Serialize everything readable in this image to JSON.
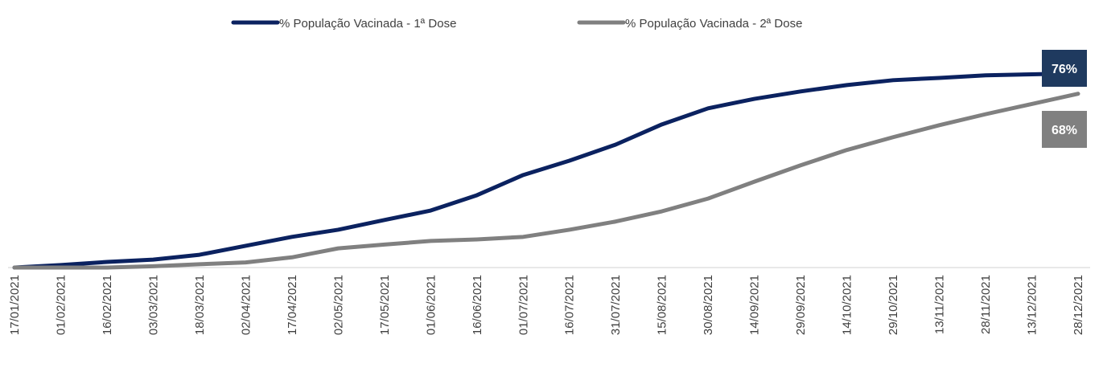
{
  "chart_data": {
    "type": "line",
    "categories": [
      "17/01/2021",
      "01/02/2021",
      "16/02/2021",
      "03/03/2021",
      "18/03/2021",
      "02/04/2021",
      "17/04/2021",
      "02/05/2021",
      "17/05/2021",
      "01/06/2021",
      "16/06/2021",
      "01/07/2021",
      "16/07/2021",
      "31/07/2021",
      "15/08/2021",
      "30/08/2021",
      "14/09/2021",
      "29/09/2021",
      "14/10/2021",
      "29/10/2021",
      "13/11/2021",
      "28/11/2021",
      "13/12/2021",
      "28/12/2021"
    ],
    "series": [
      {
        "name": "% População Vacinada - 1ª Dose",
        "color": "#0b2260",
        "label_color": "#1f3a5f",
        "end_label": "76%",
        "values": [
          0,
          1,
          2.2,
          3.1,
          5,
          8.5,
          12,
          14.8,
          18.6,
          22.3,
          28.3,
          36.2,
          41.8,
          48.1,
          56,
          62.3,
          66,
          68.9,
          71.4,
          73.3,
          74.2,
          75.2,
          75.6,
          76
        ]
      },
      {
        "name": "% População Vacinada - 2ª Dose",
        "color": "#808080",
        "label_color": "#808080",
        "end_label": "68%",
        "values": [
          0,
          0,
          0,
          0.5,
          1.3,
          2,
          4,
          7.5,
          9,
          10.4,
          11,
          12,
          14.8,
          18,
          22,
          27,
          33.6,
          40,
          46,
          51,
          55.7,
          60,
          64,
          68
        ]
      }
    ],
    "ylim": [
      0,
      80
    ],
    "legend": "top"
  }
}
